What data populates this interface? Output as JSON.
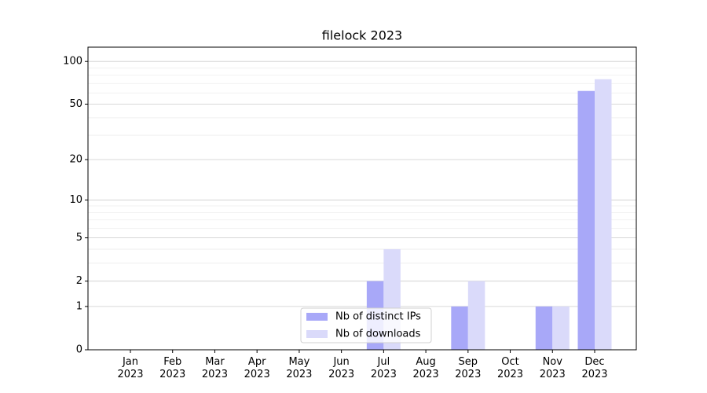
{
  "chart_data": {
    "type": "bar",
    "title": "filelock 2023",
    "categories": [
      "Jan 2023",
      "Feb 2023",
      "Mar 2023",
      "Apr 2023",
      "May 2023",
      "Jun 2023",
      "Jul 2023",
      "Aug 2023",
      "Sep 2023",
      "Oct 2023",
      "Nov 2023",
      "Dec 2023"
    ],
    "series": [
      {
        "name": "Nb of distinct IPs",
        "color": "#a8a8f8",
        "values": [
          0,
          0,
          0,
          0,
          0,
          0,
          2,
          0,
          1,
          0,
          1,
          62
        ]
      },
      {
        "name": "Nb of downloads",
        "color": "#dadafa",
        "values": [
          0,
          0,
          0,
          0,
          0,
          0,
          4,
          0,
          2,
          0,
          1,
          75
        ]
      }
    ],
    "yscale": "log1p",
    "ylim": [
      0,
      126
    ],
    "yticks": [
      0,
      1,
      2,
      5,
      10,
      20,
      50,
      100
    ],
    "yminorticks": [
      3,
      4,
      6,
      7,
      8,
      9,
      30,
      40,
      60,
      70,
      80,
      90
    ],
    "grid": true,
    "legend": "lower center"
  }
}
